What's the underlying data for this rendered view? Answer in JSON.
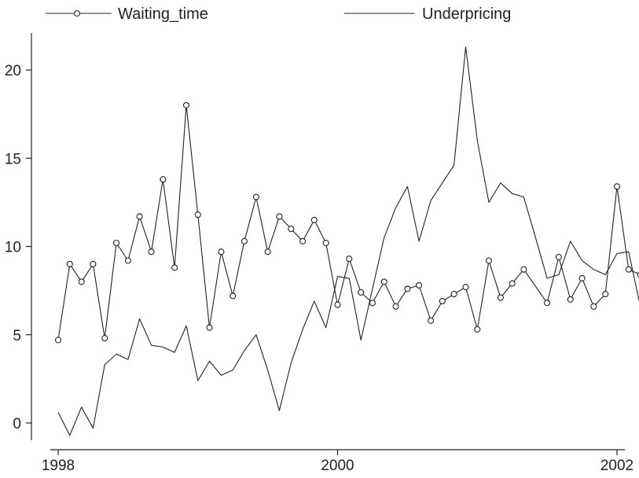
{
  "chart_data": {
    "type": "line",
    "title": "",
    "xlabel": "",
    "ylabel": "",
    "xlim": [
      1998,
      2002.92
    ],
    "ylim": [
      -0.9,
      22.0
    ],
    "x_ticks": [
      {
        "value": 1998,
        "label": "1998"
      },
      {
        "value": 2000,
        "label": "2000"
      },
      {
        "value": 2002,
        "label": "2002"
      }
    ],
    "y_ticks": [
      {
        "value": 0,
        "label": "0"
      },
      {
        "value": 5,
        "label": "5"
      },
      {
        "value": 10,
        "label": "10"
      },
      {
        "value": 15,
        "label": "15"
      },
      {
        "value": 20,
        "label": "20"
      }
    ],
    "legend_position": "top",
    "grid": false,
    "color": "#222222",
    "series": [
      {
        "name": "Waiting_time",
        "marker": "circle",
        "values": [
          [
            1998.0,
            4.7
          ],
          [
            1998.083,
            9.0
          ],
          [
            1998.167,
            8.0
          ],
          [
            1998.25,
            9.0
          ],
          [
            1998.333,
            4.8
          ],
          [
            1998.417,
            10.2
          ],
          [
            1998.5,
            9.2
          ],
          [
            1998.583,
            11.7
          ],
          [
            1998.667,
            9.7
          ],
          [
            1998.75,
            13.8
          ],
          [
            1998.833,
            8.8
          ],
          [
            1998.917,
            18.0
          ],
          [
            1999.0,
            11.8
          ],
          [
            1999.083,
            5.4
          ],
          [
            1999.167,
            9.7
          ],
          [
            1999.25,
            7.2
          ],
          [
            1999.333,
            10.3
          ],
          [
            1999.417,
            12.8
          ],
          [
            1999.5,
            9.7
          ],
          [
            1999.583,
            11.7
          ],
          [
            1999.667,
            11.0
          ],
          [
            1999.75,
            10.3
          ],
          [
            1999.833,
            11.5
          ],
          [
            1999.917,
            10.2
          ],
          [
            2000.0,
            6.7
          ],
          [
            2000.083,
            9.3
          ],
          [
            2000.167,
            7.4
          ],
          [
            2000.25,
            6.8
          ],
          [
            2000.333,
            8.0
          ],
          [
            2000.417,
            6.6
          ],
          [
            2000.5,
            7.6
          ],
          [
            2000.583,
            7.8
          ],
          [
            2000.667,
            5.8
          ],
          [
            2000.75,
            6.9
          ],
          [
            2000.833,
            7.3
          ],
          [
            2000.917,
            7.7
          ],
          [
            2001.0,
            5.3
          ],
          [
            2001.083,
            9.2
          ],
          [
            2001.167,
            7.1
          ],
          [
            2001.25,
            7.9
          ],
          [
            2001.333,
            8.7
          ],
          [
            2001.5,
            6.8
          ],
          [
            2001.583,
            9.4
          ],
          [
            2001.667,
            7.0
          ],
          [
            2001.75,
            8.2
          ],
          [
            2001.833,
            6.6
          ],
          [
            2001.917,
            7.3
          ],
          [
            2002.0,
            13.4
          ],
          [
            2002.083,
            8.7
          ],
          [
            2002.167,
            8.4
          ],
          [
            2002.25,
            1.5
          ],
          [
            2002.333,
            8.4
          ],
          [
            2002.417,
            8.7
          ],
          [
            2002.5,
            8.6
          ],
          [
            2002.583,
            9.6
          ],
          [
            2002.667,
            6.7
          ],
          [
            2002.75,
            7.6
          ],
          [
            2002.833,
            10.8
          ],
          [
            2002.917,
            13.4
          ]
        ]
      },
      {
        "name": "Underpricing",
        "marker": "none",
        "values": [
          [
            1998.0,
            0.6
          ],
          [
            1998.083,
            -0.7
          ],
          [
            1998.167,
            0.9
          ],
          [
            1998.25,
            -0.3
          ],
          [
            1998.333,
            3.3
          ],
          [
            1998.417,
            3.9
          ],
          [
            1998.5,
            3.6
          ],
          [
            1998.583,
            5.9
          ],
          [
            1998.667,
            4.4
          ],
          [
            1998.75,
            4.3
          ],
          [
            1998.833,
            4.0
          ],
          [
            1998.917,
            5.5
          ],
          [
            1999.0,
            2.4
          ],
          [
            1999.083,
            3.5
          ],
          [
            1999.167,
            2.7
          ],
          [
            1999.25,
            3.0
          ],
          [
            1999.333,
            4.1
          ],
          [
            1999.417,
            5.0
          ],
          [
            1999.5,
            3.0
          ],
          [
            1999.583,
            0.7
          ],
          [
            1999.667,
            3.4
          ],
          [
            1999.75,
            5.3
          ],
          [
            1999.833,
            6.9
          ],
          [
            1999.917,
            5.4
          ],
          [
            2000.0,
            8.3
          ],
          [
            2000.083,
            8.2
          ],
          [
            2000.167,
            4.7
          ],
          [
            2000.25,
            7.6
          ],
          [
            2000.333,
            10.5
          ],
          [
            2000.417,
            12.2
          ],
          [
            2000.5,
            13.4
          ],
          [
            2000.583,
            10.3
          ],
          [
            2000.667,
            12.6
          ],
          [
            2000.75,
            13.6
          ],
          [
            2000.833,
            14.6
          ],
          [
            2000.917,
            21.3
          ],
          [
            2001.0,
            16.0
          ],
          [
            2001.083,
            12.5
          ],
          [
            2001.167,
            13.6
          ],
          [
            2001.25,
            13.0
          ],
          [
            2001.333,
            12.8
          ],
          [
            2001.417,
            10.5
          ],
          [
            2001.5,
            8.2
          ],
          [
            2001.583,
            8.4
          ],
          [
            2001.667,
            10.3
          ],
          [
            2001.75,
            9.2
          ],
          [
            2001.833,
            8.7
          ],
          [
            2001.917,
            8.4
          ],
          [
            2002.0,
            9.6
          ],
          [
            2002.083,
            9.7
          ],
          [
            2002.167,
            6.6
          ],
          [
            2002.25,
            6.5
          ],
          [
            2002.333,
            4.6
          ],
          [
            2002.417,
            4.9
          ],
          [
            2002.5,
            6.0
          ],
          [
            2002.583,
            3.3
          ],
          [
            2002.667,
            1.6
          ],
          [
            2002.75,
            4.3
          ],
          [
            2002.833,
            3.3
          ]
        ]
      }
    ]
  }
}
